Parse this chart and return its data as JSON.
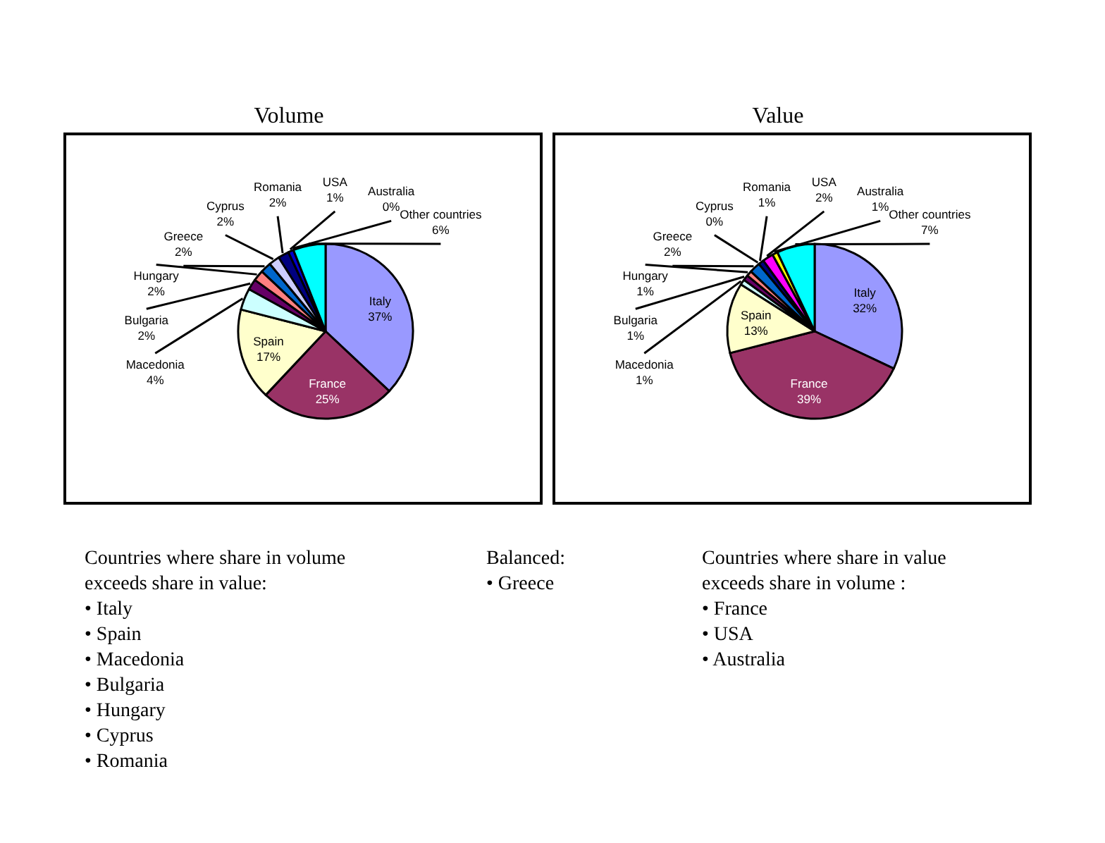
{
  "chart_data": [
    {
      "type": "pie",
      "title": "Volume",
      "categories": [
        "Italy",
        "France",
        "Spain",
        "Macedonia",
        "Bulgaria",
        "Hungary",
        "Greece",
        "Cyprus",
        "Romania",
        "USA",
        "Australia",
        "Other countries"
      ],
      "values": [
        37,
        25,
        17,
        4,
        2,
        2,
        2,
        2,
        2,
        1,
        0,
        6
      ],
      "value_labels": [
        "37%",
        "25%",
        "17%",
        "4%",
        "2%",
        "2%",
        "2%",
        "2%",
        "2%",
        "1%",
        "0%",
        "6%"
      ],
      "colors": [
        "#9999ff",
        "#993366",
        "#ffffcc",
        "#ccffff",
        "#660066",
        "#ff8080",
        "#0066cc",
        "#ccccff",
        "#000080",
        "#0000cc",
        "#ff00ff",
        "#00ffff"
      ]
    },
    {
      "type": "pie",
      "title": "Value",
      "categories": [
        "Italy",
        "France",
        "Spain",
        "Macedonia",
        "Bulgaria",
        "Hungary",
        "Greece",
        "Cyprus",
        "Romania",
        "USA",
        "Australia",
        "Other countries"
      ],
      "values": [
        32,
        39,
        13,
        1,
        1,
        1,
        2,
        0,
        1,
        2,
        1,
        7
      ],
      "value_labels": [
        "32%",
        "39%",
        "13%",
        "1%",
        "1%",
        "1%",
        "2%",
        "0%",
        "1%",
        "2%",
        "1%",
        "7%"
      ],
      "colors": [
        "#9999ff",
        "#993366",
        "#ffffcc",
        "#ccffff",
        "#660066",
        "#ff8080",
        "#0066cc",
        "#ccccff",
        "#000080",
        "#ff00ff",
        "#ffff00",
        "#00ffff"
      ]
    },
    {
      "type": "other",
      "annotations": [
        "Countries where share in volume exceeds share in value:",
        "• Italy",
        "• Spain",
        "• Macedonia",
        "• Bulgaria",
        "• Hungary",
        "• Cyprus",
        "• Romania"
      ]
    },
    {
      "type": "other",
      "annotations": [
        "Balanced:",
        "• Greece"
      ]
    },
    {
      "type": "other",
      "annotations": [
        "Countries where share in value exceeds share in volume :",
        "• France",
        "• USA",
        "• Australia"
      ]
    }
  ]
}
